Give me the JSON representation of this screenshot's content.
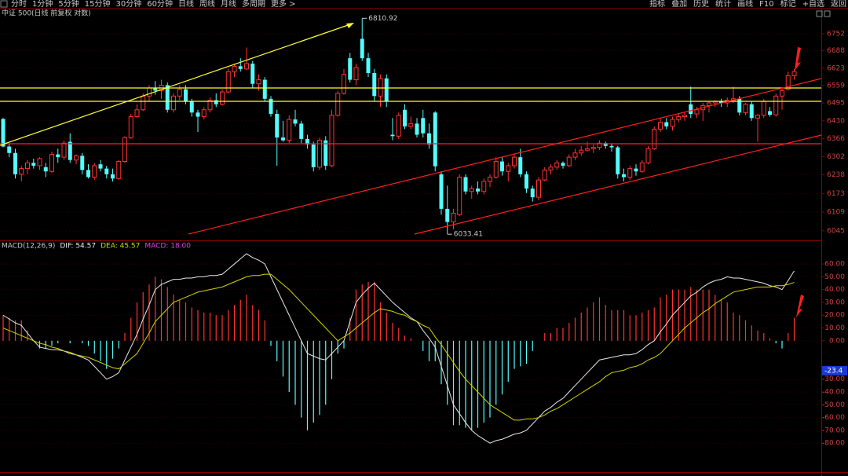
{
  "toolbar": {
    "left": [
      "分时",
      "1分钟",
      "5分钟",
      "15分钟",
      "30分钟",
      "60分钟",
      "日线",
      "周线",
      "月线",
      "多周期",
      "更多 >"
    ],
    "right": [
      "指标",
      "叠加",
      "历史",
      "统计",
      "画线",
      "F10",
      "标记",
      "+自选",
      "返回"
    ]
  },
  "chart_data": [
    {
      "type": "candlestick",
      "title": "中证 500(日线 前复权 对数)",
      "log": true,
      "grid": true,
      "up_color": "#ff3232",
      "down_color": "#54fcfc",
      "ylim": [
        6018,
        6845
      ],
      "yticks": [
        6752,
        6688,
        6623,
        6559,
        6495,
        6430,
        6366,
        6302,
        6238,
        6173,
        6109,
        6045
      ],
      "candles": [
        [
          6437,
          6440,
          6335,
          6338
        ],
        [
          6338,
          6350,
          6300,
          6315
        ],
        [
          6315,
          6330,
          6225,
          6240
        ],
        [
          6240,
          6270,
          6215,
          6260
        ],
        [
          6260,
          6290,
          6240,
          6280
        ],
        [
          6280,
          6295,
          6260,
          6270
        ],
        [
          6270,
          6300,
          6255,
          6295
        ],
        [
          6265,
          6280,
          6230,
          6250
        ],
        [
          6250,
          6320,
          6245,
          6310
        ],
        [
          6310,
          6330,
          6280,
          6300
        ],
        [
          6300,
          6360,
          6290,
          6350
        ],
        [
          6355,
          6385,
          6280,
          6290
        ],
        [
          6290,
          6310,
          6275,
          6305
        ],
        [
          6305,
          6315,
          6240,
          6255
        ],
        [
          6255,
          6275,
          6225,
          6230
        ],
        [
          6230,
          6280,
          6220,
          6270
        ],
        [
          6275,
          6290,
          6250,
          6260
        ],
        [
          6260,
          6270,
          6225,
          6240
        ],
        [
          6240,
          6260,
          6215,
          6225
        ],
        [
          6225,
          6290,
          6220,
          6285
        ],
        [
          6285,
          6375,
          6280,
          6370
        ],
        [
          6370,
          6455,
          6365,
          6445
        ],
        [
          6445,
          6490,
          6440,
          6470
        ],
        [
          6470,
          6530,
          6465,
          6520
        ],
        [
          6520,
          6560,
          6500,
          6550
        ],
        [
          6550,
          6575,
          6525,
          6540
        ],
        [
          6540,
          6580,
          6510,
          6560
        ],
        [
          6560,
          6570,
          6460,
          6470
        ],
        [
          6470,
          6530,
          6460,
          6520
        ],
        [
          6520,
          6560,
          6505,
          6545
        ],
        [
          6545,
          6560,
          6490,
          6500
        ],
        [
          6500,
          6510,
          6445,
          6460
        ],
        [
          6460,
          6470,
          6390,
          6445
        ],
        [
          6445,
          6480,
          6435,
          6470
        ],
        [
          6470,
          6515,
          6460,
          6505
        ],
        [
          6505,
          6530,
          6480,
          6490
        ],
        [
          6490,
          6545,
          6485,
          6535
        ],
        [
          6535,
          6620,
          6530,
          6610
        ],
        [
          6610,
          6640,
          6590,
          6630
        ],
        [
          6630,
          6660,
          6610,
          6620
        ],
        [
          6620,
          6700,
          6615,
          6640
        ],
        [
          6640,
          6650,
          6550,
          6565
        ],
        [
          6565,
          6600,
          6540,
          6580
        ],
        [
          6580,
          6590,
          6500,
          6510
        ],
        [
          6510,
          6520,
          6445,
          6455
        ],
        [
          6455,
          6470,
          6270,
          6370
        ],
        [
          6370,
          6430,
          6355,
          6360
        ],
        [
          6360,
          6450,
          6350,
          6435
        ],
        [
          6435,
          6470,
          6410,
          6420
        ],
        [
          6420,
          6430,
          6350,
          6365
        ],
        [
          6365,
          6380,
          6330,
          6345
        ],
        [
          6345,
          6355,
          6250,
          6265
        ],
        [
          6265,
          6370,
          6255,
          6360
        ],
        [
          6360,
          6375,
          6255,
          6270
        ],
        [
          6270,
          6470,
          6265,
          6450
        ],
        [
          6450,
          6540,
          6445,
          6530
        ],
        [
          6530,
          6620,
          6525,
          6600
        ],
        [
          6660,
          6680,
          6570,
          6580
        ],
        [
          6580,
          6640,
          6560,
          6625
        ],
        [
          6733,
          6810.92,
          6650,
          6660
        ],
        [
          6660,
          6680,
          6590,
          6605
        ],
        [
          6605,
          6620,
          6500,
          6520
        ],
        [
          6520,
          6600,
          6480,
          6585
        ],
        [
          6585,
          6600,
          6480,
          6500
        ],
        [
          6380,
          6440,
          6360,
          6375
        ],
        [
          6375,
          6460,
          6365,
          6450
        ],
        [
          6470,
          6490,
          6400,
          6410
        ],
        [
          6410,
          6445,
          6400,
          6420
        ],
        [
          6420,
          6440,
          6370,
          6380
        ],
        [
          6440,
          6470,
          6370,
          6385
        ],
        [
          6385,
          6420,
          6330,
          6345
        ],
        [
          6460,
          6465,
          6250,
          6268
        ],
        [
          6240,
          6250,
          6100,
          6120
        ],
        [
          6120,
          6200,
          6033.41,
          6075
        ],
        [
          6075,
          6120,
          6050,
          6105
        ],
        [
          6100,
          6240,
          6095,
          6230
        ],
        [
          6230,
          6240,
          6170,
          6180
        ],
        [
          6180,
          6200,
          6155,
          6190
        ],
        [
          6190,
          6215,
          6170,
          6180
        ],
        [
          6180,
          6225,
          6170,
          6215
        ],
        [
          6215,
          6240,
          6195,
          6230
        ],
        [
          6230,
          6300,
          6225,
          6285
        ],
        [
          6285,
          6300,
          6235,
          6250
        ],
        [
          6250,
          6280,
          6215,
          6270
        ],
        [
          6270,
          6310,
          6260,
          6300
        ],
        [
          6300,
          6330,
          6230,
          6240
        ],
        [
          6240,
          6250,
          6175,
          6190
        ],
        [
          6190,
          6200,
          6145,
          6160
        ],
        [
          6160,
          6230,
          6150,
          6220
        ],
        [
          6220,
          6265,
          6215,
          6255
        ],
        [
          6255,
          6275,
          6240,
          6265
        ],
        [
          6265,
          6290,
          6255,
          6280
        ],
        [
          6280,
          6285,
          6260,
          6270
        ],
        [
          6270,
          6310,
          6265,
          6300
        ],
        [
          6300,
          6330,
          6290,
          6315
        ],
        [
          6315,
          6340,
          6305,
          6325
        ],
        [
          6325,
          6355,
          6320,
          6330
        ],
        [
          6330,
          6345,
          6315,
          6335
        ],
        [
          6335,
          6360,
          6325,
          6350
        ],
        [
          6350,
          6355,
          6330,
          6340
        ],
        [
          6340,
          6350,
          6320,
          6335
        ],
        [
          6335,
          6340,
          6225,
          6240
        ],
        [
          6240,
          6260,
          6215,
          6230
        ],
        [
          6230,
          6270,
          6220,
          6260
        ],
        [
          6260,
          6275,
          6235,
          6250
        ],
        [
          6250,
          6290,
          6245,
          6280
        ],
        [
          6280,
          6340,
          6275,
          6330
        ],
        [
          6330,
          6410,
          6325,
          6400
        ],
        [
          6400,
          6440,
          6390,
          6425
        ],
        [
          6425,
          6440,
          6400,
          6410
        ],
        [
          6410,
          6445,
          6395,
          6435
        ],
        [
          6435,
          6455,
          6425,
          6445
        ],
        [
          6445,
          6460,
          6430,
          6450
        ],
        [
          6490,
          6555,
          6440,
          6455
        ],
        [
          6455,
          6480,
          6440,
          6470
        ],
        [
          6470,
          6495,
          6430,
          6485
        ],
        [
          6485,
          6500,
          6460,
          6495
        ],
        [
          6495,
          6505,
          6480,
          6500
        ],
        [
          6500,
          6510,
          6480,
          6495
        ],
        [
          6495,
          6515,
          6480,
          6505
        ],
        [
          6505,
          6555,
          6495,
          6510
        ],
        [
          6510,
          6520,
          6450,
          6460
        ],
        [
          6460,
          6495,
          6450,
          6490
        ],
        [
          6490,
          6500,
          6430,
          6440
        ],
        [
          6440,
          6455,
          6355,
          6450
        ],
        [
          6450,
          6510,
          6440,
          6500
        ],
        [
          6465,
          6480,
          6445,
          6452
        ],
        [
          6452,
          6530,
          6445,
          6520
        ],
        [
          6520,
          6550,
          6470,
          6540
        ],
        [
          6545,
          6610,
          6540,
          6595
        ],
        [
          6595,
          6620,
          6580,
          6610
        ]
      ]
    },
    {
      "type": "macd",
      "title": "MACD(12,26,9)",
      "grid": true,
      "legend_labels": [
        "DIF: 54.57",
        "DEA: 45.57",
        "MACD: 18.00"
      ],
      "ylim": [
        -102,
        76
      ],
      "yticks": [
        {
          "value": 60,
          "label": "60.00"
        },
        {
          "value": 50,
          "label": "50.00"
        },
        {
          "value": 40,
          "label": "40.00"
        },
        {
          "value": 30,
          "label": "30.00"
        },
        {
          "value": 20,
          "label": "20.00"
        },
        {
          "value": 10,
          "label": "10.00"
        },
        {
          "value": 0,
          "label": "0.00"
        },
        {
          "value": -30,
          "label": "-30.00"
        },
        {
          "value": -40,
          "label": "-40.00"
        },
        {
          "value": -50,
          "label": "-50.00"
        },
        {
          "value": -60,
          "label": "-60.00"
        },
        {
          "value": -70,
          "label": "-70.00"
        },
        {
          "value": -80,
          "label": "-80.00"
        }
      ],
      "cursor_value": -23.4,
      "series": [
        {
          "color": "#e8e8e8",
          "values": [
            20,
            17,
            14,
            12,
            6,
            0,
            -5,
            -6,
            -7,
            -7,
            -8,
            -10,
            -11,
            -13,
            -15,
            -20,
            -25,
            -30,
            -28,
            -25,
            -15,
            -5,
            5,
            17,
            28,
            40,
            44,
            46,
            48,
            48,
            49,
            49,
            50,
            50,
            51,
            51,
            52,
            56,
            60,
            64,
            68,
            65,
            63,
            60,
            50,
            40,
            30,
            20,
            10,
            0,
            -10,
            -12,
            -14,
            -15,
            -10,
            -5,
            0,
            15,
            30,
            36,
            41,
            45,
            40,
            35,
            30,
            26,
            22,
            18,
            15,
            8,
            2,
            -5,
            -20,
            -35,
            -50,
            -57,
            -64,
            -70,
            -74,
            -77,
            -80,
            -78,
            -77,
            -75,
            -73,
            -72,
            -70,
            -65,
            -60,
            -55,
            -52,
            -48,
            -45,
            -40,
            -35,
            -30,
            -25,
            -20,
            -15,
            -14,
            -13,
            -12,
            -11,
            -11,
            -10,
            -7,
            -3,
            0,
            7,
            13,
            20,
            25,
            30,
            35,
            38,
            42,
            45,
            47,
            48,
            50,
            49,
            49,
            48,
            47,
            46,
            45,
            43,
            42,
            40,
            47,
            54.57
          ]
        },
        {
          "color": "#d4d400",
          "values": [
            10,
            8,
            6,
            4,
            2,
            0,
            -2,
            -3,
            -5,
            -6,
            -8,
            -9,
            -11,
            -12,
            -13,
            -15,
            -17,
            -19,
            -21,
            -22,
            -18,
            -14,
            -10,
            -2,
            6,
            15,
            20,
            25,
            30,
            32,
            34,
            36,
            38,
            39,
            40,
            41,
            42,
            44,
            46,
            48,
            50,
            51,
            51,
            52,
            52,
            48,
            44,
            40,
            35,
            30,
            25,
            20,
            15,
            10,
            5,
            0,
            3,
            6,
            10,
            14,
            18,
            22,
            25,
            24,
            23,
            21,
            20,
            17,
            15,
            12,
            10,
            3,
            -3,
            -10,
            -17,
            -24,
            -30,
            -35,
            -40,
            -45,
            -50,
            -53,
            -56,
            -59,
            -62,
            -62,
            -61,
            -61,
            -60,
            -58,
            -55,
            -53,
            -50,
            -47,
            -44,
            -41,
            -38,
            -35,
            -32,
            -28,
            -25,
            -24,
            -23,
            -21,
            -20,
            -18,
            -15,
            -13,
            -10,
            -5,
            0,
            5,
            10,
            14,
            18,
            22,
            25,
            29,
            32,
            35,
            38,
            39,
            40,
            41,
            42,
            42,
            42,
            43,
            43,
            44,
            45.57
          ]
        }
      ],
      "legend_colors": [
        "#e8e8e8",
        "#d4d400",
        "#e040e0"
      ],
      "histogram": {
        "up_color": "#ff3232",
        "down_color": "#54fcfc",
        "values": [
          20,
          18,
          16,
          16,
          8,
          0,
          -6,
          -6,
          -4,
          -2,
          0,
          -2,
          0,
          -2,
          -4,
          -10,
          -16,
          -22,
          -14,
          -6,
          6,
          18,
          30,
          38,
          44,
          50,
          48,
          42,
          36,
          32,
          30,
          26,
          24,
          22,
          22,
          20,
          20,
          24,
          28,
          32,
          36,
          28,
          24,
          16,
          -4,
          -16,
          -28,
          -40,
          -50,
          -60,
          -70,
          -64,
          -58,
          -50,
          -30,
          -10,
          -6,
          18,
          40,
          44,
          46,
          46,
          30,
          22,
          14,
          10,
          4,
          2,
          0,
          -8,
          -16,
          -16,
          -34,
          -50,
          -66,
          -66,
          -68,
          -70,
          -68,
          -64,
          -60,
          -50,
          -42,
          -32,
          -22,
          -20,
          -18,
          -8,
          0,
          6,
          6,
          10,
          10,
          14,
          18,
          22,
          26,
          30,
          34,
          28,
          24,
          24,
          24,
          20,
          20,
          22,
          24,
          26,
          34,
          36,
          40,
          40,
          40,
          42,
          40,
          40,
          40,
          36,
          32,
          30,
          22,
          20,
          16,
          12,
          8,
          6,
          2,
          -2,
          -6,
          6,
          18
        ]
      }
    }
  ]
}
